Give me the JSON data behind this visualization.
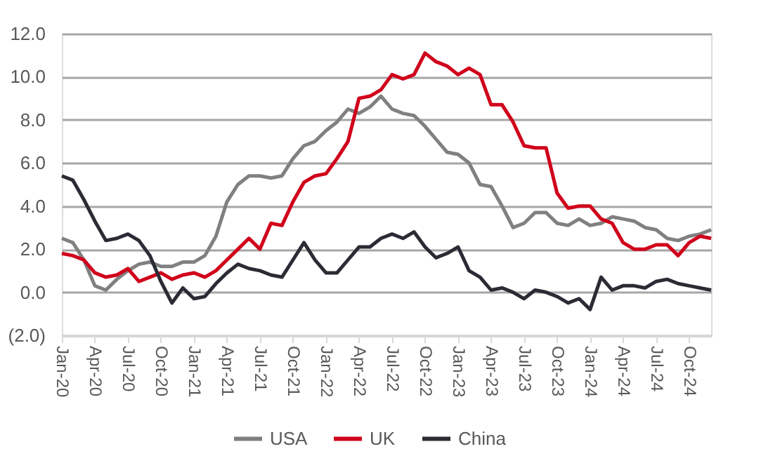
{
  "chart_data": {
    "type": "line",
    "categories": [
      "Jan-20",
      null,
      null,
      "Apr-20",
      null,
      null,
      "Jul-20",
      null,
      null,
      "Oct-20",
      null,
      null,
      "Jan-21",
      null,
      null,
      "Apr-21",
      null,
      null,
      "Jul-21",
      null,
      null,
      "Oct-21",
      null,
      null,
      "Jan-22",
      null,
      null,
      "Apr-22",
      null,
      null,
      "Jul-22",
      null,
      null,
      "Oct-22",
      null,
      null,
      "Jan-23",
      null,
      null,
      "Apr-23",
      null,
      null,
      "Jul-23",
      null,
      null,
      "Oct-23",
      null,
      null,
      "Jan-24",
      null,
      null,
      "Apr-24",
      null,
      null,
      "Jul-24",
      null,
      null,
      "Oct-24",
      null,
      null
    ],
    "series": [
      {
        "name": "USA",
        "color": "#808080",
        "values": [
          2.5,
          2.3,
          1.5,
          0.3,
          0.1,
          0.6,
          1.0,
          1.3,
          1.4,
          1.2,
          1.2,
          1.4,
          1.4,
          1.7,
          2.6,
          4.2,
          5.0,
          5.4,
          5.4,
          5.3,
          5.4,
          6.2,
          6.8,
          7.0,
          7.5,
          7.9,
          8.5,
          8.3,
          8.6,
          9.1,
          8.5,
          8.3,
          8.2,
          7.7,
          7.1,
          6.5,
          6.4,
          6.0,
          5.0,
          4.9,
          4.0,
          3.0,
          3.2,
          3.7,
          3.7,
          3.2,
          3.1,
          3.4,
          3.1,
          3.2,
          3.5,
          3.4,
          3.3,
          3.0,
          2.9,
          2.5,
          2.4,
          2.6,
          2.7,
          2.9
        ]
      },
      {
        "name": "UK",
        "color": "#d0021b",
        "values": [
          1.8,
          1.7,
          1.5,
          0.9,
          0.7,
          0.8,
          1.1,
          0.5,
          0.7,
          0.9,
          0.6,
          0.8,
          0.9,
          0.7,
          1.0,
          1.5,
          2.0,
          2.5,
          2.0,
          3.2,
          3.1,
          4.2,
          5.1,
          5.4,
          5.5,
          6.2,
          7.0,
          9.0,
          9.1,
          9.4,
          10.1,
          9.9,
          10.1,
          11.1,
          10.7,
          10.5,
          10.1,
          10.4,
          10.1,
          8.7,
          8.7,
          7.9,
          6.8,
          6.7,
          6.7,
          4.6,
          3.9,
          4.0,
          4.0,
          3.4,
          3.2,
          2.3,
          2.0,
          2.0,
          2.2,
          2.2,
          1.7,
          2.3,
          2.6,
          2.5
        ]
      },
      {
        "name": "China",
        "color": "#2b2b35",
        "values": [
          5.4,
          5.2,
          4.3,
          3.3,
          2.4,
          2.5,
          2.7,
          2.4,
          1.7,
          0.5,
          -0.5,
          0.2,
          -0.3,
          -0.2,
          0.4,
          0.9,
          1.3,
          1.1,
          1.0,
          0.8,
          0.7,
          1.5,
          2.3,
          1.5,
          0.9,
          0.9,
          1.5,
          2.1,
          2.1,
          2.5,
          2.7,
          2.5,
          2.8,
          2.1,
          1.6,
          1.8,
          2.1,
          1.0,
          0.7,
          0.1,
          0.2,
          0.0,
          -0.3,
          0.1,
          0.0,
          -0.2,
          -0.5,
          -0.3,
          -0.8,
          0.7,
          0.1,
          0.3,
          0.3,
          0.2,
          0.5,
          0.6,
          0.4,
          0.3,
          0.2,
          0.1
        ]
      }
    ],
    "ylim": [
      -2,
      12
    ],
    "yticks": [
      {
        "value": -2,
        "label": "(2.0)"
      },
      {
        "value": 0,
        "label": "0.0"
      },
      {
        "value": 2,
        "label": "2.0"
      },
      {
        "value": 4,
        "label": "4.0"
      },
      {
        "value": 6,
        "label": "6.0"
      },
      {
        "value": 8,
        "label": "8.0"
      },
      {
        "value": 10,
        "label": "10.0"
      },
      {
        "value": 12,
        "label": "12.0"
      }
    ],
    "grid": "y",
    "legend": "bottom",
    "line_style": "solid",
    "marker": "none"
  }
}
